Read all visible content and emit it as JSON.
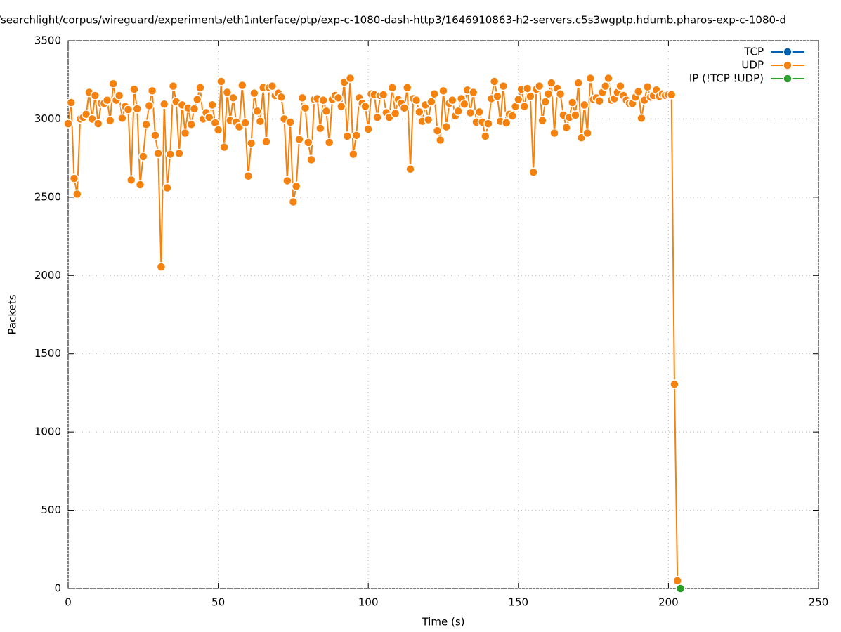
{
  "chart_data": {
    "type": "line",
    "title": "/searchlight/corpus/wireguard/experiment₃/eth1ᵢnterface/ptp/exp-c-1080-dash-http3/1646910863-h2-servers.c5s3wgptp.hdumb.pharos-exp-c-1080-d",
    "xlabel": "Time (s)",
    "ylabel": "Packets",
    "xlim": [
      0,
      250
    ],
    "xticks": [
      0,
      50,
      100,
      150,
      200,
      250
    ],
    "ylim": [
      0,
      3500
    ],
    "yticks": [
      0,
      500,
      1000,
      1500,
      2000,
      2500,
      3000,
      3500
    ],
    "grid": true,
    "legend": "top-right",
    "series": [
      {
        "name": "TCP",
        "color": "#0060ad",
        "x": [],
        "values": []
      },
      {
        "name": "UDP",
        "color": "#f5820f",
        "x": [
          0,
          1,
          2,
          3,
          4,
          5,
          6,
          7,
          8,
          9,
          10,
          11,
          12,
          13,
          14,
          15,
          16,
          17,
          18,
          19,
          20,
          21,
          22,
          23,
          24,
          25,
          26,
          27,
          28,
          29,
          30,
          31,
          32,
          33,
          34,
          35,
          36,
          37,
          38,
          39,
          40,
          41,
          42,
          43,
          44,
          45,
          46,
          47,
          48,
          49,
          50,
          51,
          52,
          53,
          54,
          55,
          56,
          57,
          58,
          59,
          60,
          61,
          62,
          63,
          64,
          65,
          66,
          67,
          68,
          69,
          70,
          71,
          72,
          73,
          74,
          75,
          76,
          77,
          78,
          79,
          80,
          81,
          82,
          83,
          84,
          85,
          86,
          87,
          88,
          89,
          90,
          91,
          92,
          93,
          94,
          95,
          96,
          97,
          98,
          99,
          100,
          101,
          102,
          103,
          104,
          105,
          106,
          107,
          108,
          109,
          110,
          111,
          112,
          113,
          114,
          115,
          116,
          117,
          118,
          119,
          120,
          121,
          122,
          123,
          124,
          125,
          126,
          127,
          128,
          129,
          130,
          131,
          132,
          133,
          134,
          135,
          136,
          137,
          138,
          139,
          140,
          141,
          142,
          143,
          144,
          145,
          146,
          147,
          148,
          149,
          150,
          151,
          152,
          153,
          154,
          155,
          156,
          157,
          158,
          159,
          160,
          161,
          162,
          163,
          164,
          165,
          166,
          167,
          168,
          169,
          170,
          171,
          172,
          173,
          174,
          175,
          176,
          177,
          178,
          179,
          180,
          181,
          182,
          183,
          184,
          185,
          186,
          187,
          188,
          189,
          190,
          191,
          192,
          193,
          194,
          195,
          196,
          197,
          198,
          199,
          200,
          201,
          202,
          203
        ],
        "values": [
          2970,
          3105,
          2620,
          2520,
          3000,
          3010,
          3030,
          3170,
          3000,
          3150,
          2970,
          3100,
          3100,
          3120,
          2990,
          3225,
          3120,
          3150,
          3005,
          3080,
          3060,
          2610,
          3190,
          3065,
          2580,
          2760,
          2965,
          3085,
          3180,
          2895,
          2780,
          2055,
          3095,
          2560,
          2775,
          3210,
          3110,
          2780,
          3090,
          2910,
          3070,
          2965,
          3065,
          3125,
          3200,
          3000,
          3040,
          3010,
          3090,
          2975,
          2930,
          3240,
          2820,
          3170,
          2990,
          3135,
          2980,
          2950,
          3215,
          2975,
          2635,
          2845,
          3165,
          3050,
          2985,
          3200,
          2855,
          3200,
          3210,
          3150,
          3165,
          3140,
          3000,
          2605,
          2980,
          2470,
          2570,
          2870,
          3135,
          3070,
          2850,
          2740,
          3125,
          3130,
          2940,
          3120,
          3050,
          2850,
          3125,
          3150,
          3135,
          3080,
          3235,
          2890,
          3260,
          2775,
          2895,
          3135,
          3100,
          3080,
          2935,
          3160,
          3155,
          3010,
          3150,
          3155,
          3040,
          3010,
          3200,
          3035,
          3125,
          3100,
          3070,
          3200,
          2680,
          3130,
          3120,
          3045,
          2985,
          3090,
          2995,
          3110,
          3160,
          2925,
          2865,
          3180,
          2950,
          3100,
          3120,
          3020,
          3050,
          3130,
          3095,
          3185,
          3040,
          3170,
          2980,
          3045,
          2980,
          2890,
          2970,
          3130,
          3240,
          3145,
          2985,
          3210,
          2975,
          3030,
          3020,
          3080,
          3125,
          3190,
          3080,
          3195,
          3145,
          2660,
          3190,
          3210,
          2990,
          3110,
          3160,
          3230,
          2910,
          3195,
          3160,
          3025,
          2945,
          3010,
          3105,
          3025,
          3230,
          2880,
          3090,
          2910,
          3260,
          3125,
          3135,
          3115,
          3170,
          3210,
          3260,
          3120,
          3130,
          3170,
          3210,
          3150,
          3120,
          3100,
          3100,
          3140,
          3175,
          3005,
          3120,
          3205,
          3140,
          3150,
          3185,
          3145,
          3160,
          3150,
          3155,
          3155,
          1305,
          50
        ]
      },
      {
        "name": "IP (!TCP  !UDP)",
        "color": "#2ca02c",
        "x": [
          204
        ],
        "values": [
          0
        ]
      }
    ]
  }
}
